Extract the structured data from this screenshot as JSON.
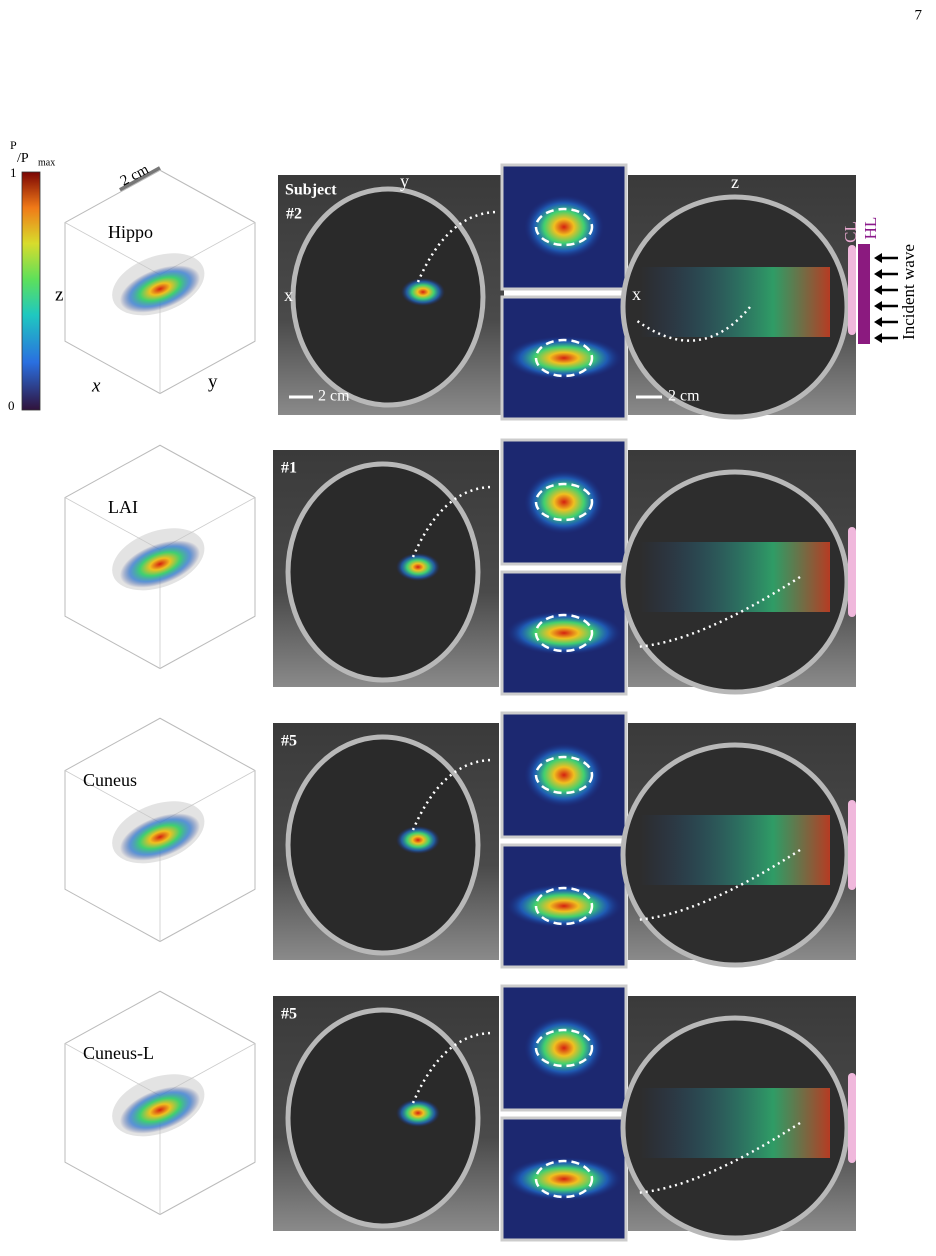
{
  "page_number": "7",
  "colorbar": {
    "label_top": "P",
    "label_bottom": "/P",
    "label_sub": "max",
    "tick_top": 1,
    "tick_bottom": 0
  },
  "cube_axes": {
    "scale": "2 cm",
    "z": "z",
    "x": "x",
    "y": "y"
  },
  "header": {
    "subject": "Subject",
    "left_y": "y",
    "left_x": "x",
    "left_scale": "2 cm",
    "right_z": "z",
    "right_x": "x",
    "right_scale": "2 cm",
    "cl": "CL",
    "hl": "HL",
    "incident": "Incident wave"
  },
  "rows": [
    {
      "region": "Hippo",
      "subject": "#2"
    },
    {
      "region": "LAI",
      "subject": "#1"
    },
    {
      "region": "Cuneus",
      "subject": "#5"
    },
    {
      "region": "Cuneus-L",
      "subject": "#5"
    }
  ]
}
